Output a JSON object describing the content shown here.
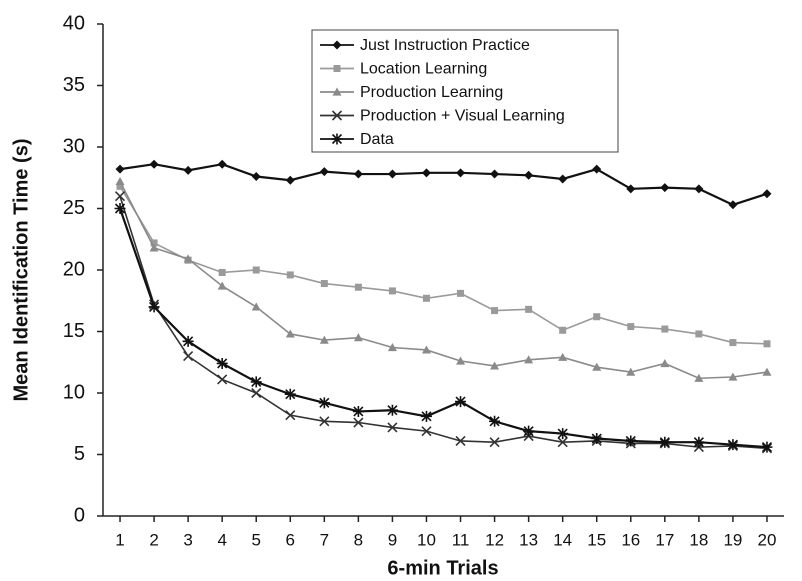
{
  "chart_data": {
    "type": "line",
    "x_label": "6-min Trials",
    "y_label": "Mean Identification Time (s)",
    "x": [
      1,
      2,
      3,
      4,
      5,
      6,
      7,
      8,
      9,
      10,
      11,
      12,
      13,
      14,
      15,
      16,
      17,
      18,
      19,
      20
    ],
    "xlim": [
      0.5,
      20.5
    ],
    "xticks": [
      1,
      2,
      3,
      4,
      5,
      6,
      7,
      8,
      9,
      10,
      11,
      12,
      13,
      14,
      15,
      16,
      17,
      18,
      19,
      20
    ],
    "ylim": [
      0,
      40
    ],
    "yticks": [
      0,
      5,
      10,
      15,
      20,
      25,
      30,
      35,
      40
    ],
    "grid": false,
    "legend": "top",
    "series": [
      {
        "name": "Just Instruction Practice",
        "color": "#111111",
        "marker": "diamond",
        "values": [
          28.2,
          28.6,
          28.1,
          28.6,
          27.6,
          27.3,
          28.0,
          27.8,
          27.8,
          27.9,
          27.9,
          27.8,
          27.7,
          27.4,
          28.2,
          26.6,
          26.7,
          26.6,
          25.3,
          26.2
        ]
      },
      {
        "name": "Location Learning",
        "color": "#9a9a9a",
        "marker": "square",
        "values": [
          26.8,
          22.2,
          20.8,
          19.8,
          20.0,
          19.6,
          18.9,
          18.6,
          18.3,
          17.7,
          18.1,
          16.7,
          16.8,
          15.1,
          16.2,
          15.4,
          15.2,
          14.8,
          14.1,
          14.0
        ]
      },
      {
        "name": "Production Learning",
        "color": "#8a8a8a",
        "marker": "triangle",
        "values": [
          27.2,
          21.8,
          20.9,
          18.7,
          17.0,
          14.8,
          14.3,
          14.5,
          13.7,
          13.5,
          12.6,
          12.2,
          12.7,
          12.9,
          12.1,
          11.7,
          12.4,
          11.2,
          11.3,
          11.7
        ]
      },
      {
        "name": "Production + Visual Learning",
        "color": "#333333",
        "marker": "x",
        "values": [
          26.0,
          17.2,
          13.0,
          11.1,
          10.0,
          8.2,
          7.7,
          7.6,
          7.2,
          6.9,
          6.1,
          6.0,
          6.5,
          6.0,
          6.1,
          5.9,
          5.9,
          5.6,
          5.7,
          5.5
        ]
      },
      {
        "name": "Data",
        "color": "#111111",
        "marker": "asterisk",
        "values": [
          25.0,
          17.0,
          14.2,
          12.4,
          10.9,
          9.9,
          9.2,
          8.5,
          8.6,
          8.1,
          9.3,
          7.7,
          6.9,
          6.7,
          6.3,
          6.1,
          6.0,
          6.0,
          5.8,
          5.6
        ]
      }
    ]
  }
}
